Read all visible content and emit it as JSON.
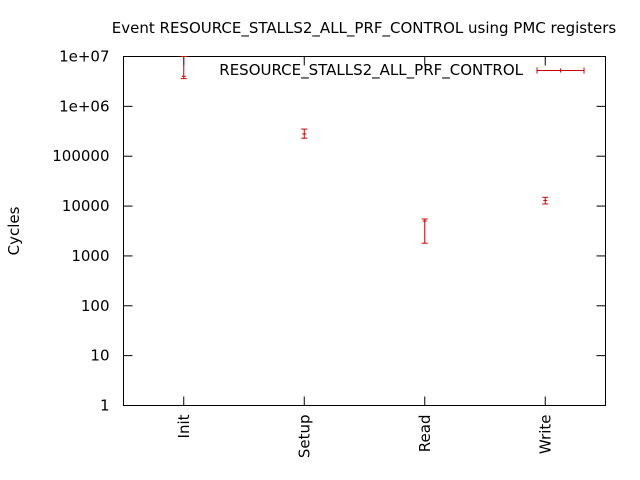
{
  "chart_data": {
    "type": "scatter",
    "title": "Event RESOURCE_STALLS2_ALL_PRF_CONTROL using PMC registers",
    "xlabel": "",
    "ylabel": "Cycles",
    "y_scale": "log",
    "ylim": [
      1,
      10000000
    ],
    "y_ticks": [
      "1",
      "10",
      "100",
      "1000",
      "10000",
      "100000",
      "1e+06",
      "1e+07"
    ],
    "categories": [
      "Init",
      "Setup",
      "Read",
      "Write"
    ],
    "grid": false,
    "legend_position": "top-right",
    "series": [
      {
        "name": "RESOURCE_STALLS2_ALL_PRF_CONTROL",
        "color": "#cc0000",
        "points": [
          {
            "category": "Init",
            "y": 4000000,
            "low": 3600000,
            "high": 10000000
          },
          {
            "category": "Setup",
            "y": 280000,
            "low": 230000,
            "high": 350000
          },
          {
            "category": "Read",
            "y": 5000,
            "low": 1800,
            "high": 5500
          },
          {
            "category": "Write",
            "y": 13000,
            "low": 11000,
            "high": 15000
          }
        ]
      }
    ]
  }
}
